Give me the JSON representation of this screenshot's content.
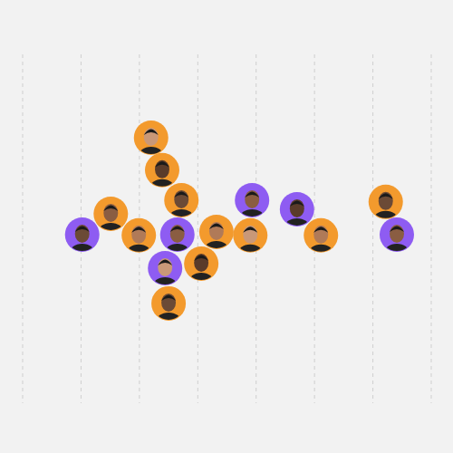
{
  "chart_data": {
    "type": "scatter",
    "x": [
      1.02,
      1.51,
      2.2,
      2.39,
      1.99,
      2.72,
      2.65,
      2.44,
      3.06,
      3.32,
      2.5,
      3.93,
      3.9,
      4.7,
      5.11,
      6.22,
      6.41
    ],
    "values": [
      48.3,
      54.3,
      76.1,
      66.8,
      48.1,
      58.2,
      48.3,
      38.7,
      40.0,
      49.1,
      28.6,
      58.2,
      48.1,
      55.6,
      48.1,
      57.7,
      48.3
    ],
    "colors": [
      "#8e5cf2",
      "#f39a2d",
      "#f39a2d",
      "#f39a2d",
      "#f39a2d",
      "#f39a2d",
      "#8e5cf2",
      "#8e5cf2",
      "#f39a2d",
      "#f39a2d",
      "#f39a2d",
      "#8e5cf2",
      "#f39a2d",
      "#8e5cf2",
      "#f39a2d",
      "#f39a2d",
      "#8e5cf2"
    ],
    "xlim": [
      0,
      7
    ],
    "xticks": [
      0,
      1,
      2,
      3,
      4,
      5,
      6,
      7
    ],
    "ylim": [
      0,
      100
    ],
    "grid": true,
    "tick_labels": false
  }
}
